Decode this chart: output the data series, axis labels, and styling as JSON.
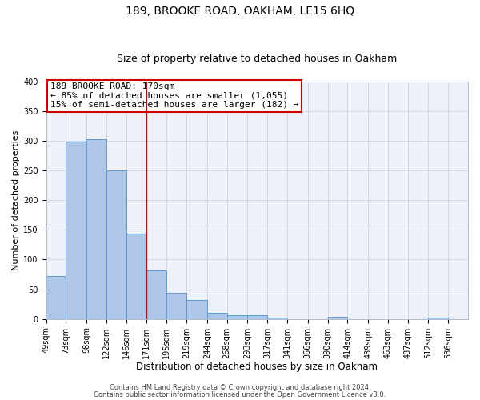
{
  "title": "189, BROOKE ROAD, OAKHAM, LE15 6HQ",
  "subtitle": "Size of property relative to detached houses in Oakham",
  "xlabel": "Distribution of detached houses by size in Oakham",
  "ylabel": "Number of detached properties",
  "bar_left_edges": [
    49,
    73,
    98,
    122,
    146,
    171,
    195,
    219,
    244,
    268,
    293,
    317,
    341,
    366,
    390,
    414,
    439,
    463,
    487,
    512
  ],
  "bar_heights": [
    72,
    298,
    303,
    250,
    143,
    82,
    44,
    32,
    10,
    6,
    7,
    2,
    0,
    0,
    4,
    0,
    0,
    0,
    0,
    3
  ],
  "bin_widths": [
    24,
    25,
    24,
    24,
    25,
    24,
    24,
    25,
    24,
    25,
    24,
    24,
    25,
    24,
    24,
    25,
    24,
    24,
    25,
    24
  ],
  "xtick_labels": [
    "49sqm",
    "73sqm",
    "98sqm",
    "122sqm",
    "146sqm",
    "171sqm",
    "195sqm",
    "219sqm",
    "244sqm",
    "268sqm",
    "293sqm",
    "317sqm",
    "341sqm",
    "366sqm",
    "390sqm",
    "414sqm",
    "439sqm",
    "463sqm",
    "487sqm",
    "512sqm",
    "536sqm"
  ],
  "xtick_positions": [
    49,
    73,
    98,
    122,
    146,
    171,
    195,
    219,
    244,
    268,
    293,
    317,
    341,
    366,
    390,
    414,
    439,
    463,
    487,
    512,
    536
  ],
  "ylim": [
    0,
    400
  ],
  "yticks": [
    0,
    50,
    100,
    150,
    200,
    250,
    300,
    350,
    400
  ],
  "bar_color": "#aec6e8",
  "bar_edge_color": "#5b9bd5",
  "vline_x": 171,
  "vline_color": "#cc0000",
  "annotation_line1": "189 BROOKE ROAD: 170sqm",
  "annotation_line2": "← 85% of detached houses are smaller (1,055)",
  "annotation_line3": "15% of semi-detached houses are larger (182) →",
  "annotation_box_color": "#cc0000",
  "grid_color": "#d0d8e8",
  "bg_color": "#eef2f8",
  "footer_line1": "Contains HM Land Registry data © Crown copyright and database right 2024.",
  "footer_line2": "Contains public sector information licensed under the Open Government Licence v3.0.",
  "title_fontsize": 10,
  "subtitle_fontsize": 9,
  "xlabel_fontsize": 8.5,
  "ylabel_fontsize": 8,
  "tick_fontsize": 7,
  "annotation_fontsize": 8,
  "footer_fontsize": 6
}
